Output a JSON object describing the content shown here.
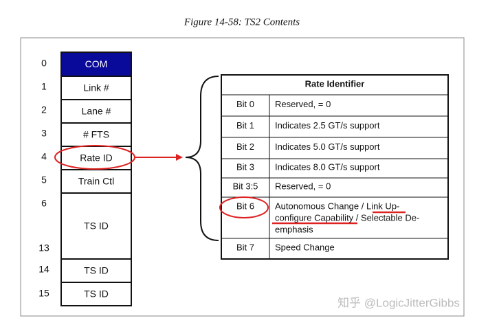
{
  "caption": "Figure 14-58: TS2 Contents",
  "symbols": {
    "indices": [
      "0",
      "1",
      "2",
      "3",
      "4",
      "5",
      "6",
      "13",
      "14",
      "15"
    ],
    "fields": [
      "COM",
      "Link #",
      "Lane #",
      "# FTS",
      "Rate ID",
      "Train Ctl",
      "TS ID",
      "TS ID",
      "TS ID"
    ]
  },
  "table": {
    "header": "Rate Identifier",
    "rows": [
      {
        "bit": "Bit 0",
        "description": [
          "Reserved, = 0"
        ]
      },
      {
        "bit": "Bit 1",
        "description": [
          "Indicates 2.5 GT/s support"
        ]
      },
      {
        "bit": "Bit 2",
        "description": [
          "Indicates 5.0 GT/s support"
        ]
      },
      {
        "bit": "Bit 3",
        "description": [
          "Indicates 8.0 GT/s support"
        ]
      },
      {
        "bit": "Bit 3:5",
        "description": [
          "Reserved, = 0"
        ]
      },
      {
        "bit": "Bit 6",
        "description": [
          "Autonomous Change / Link Up-",
          "configure Capability / Selectable De-",
          "emphasis"
        ]
      },
      {
        "bit": "Bit 7",
        "description": [
          "Speed Change"
        ]
      }
    ]
  },
  "watermark": "知乎 @LogicJitterGibbs"
}
